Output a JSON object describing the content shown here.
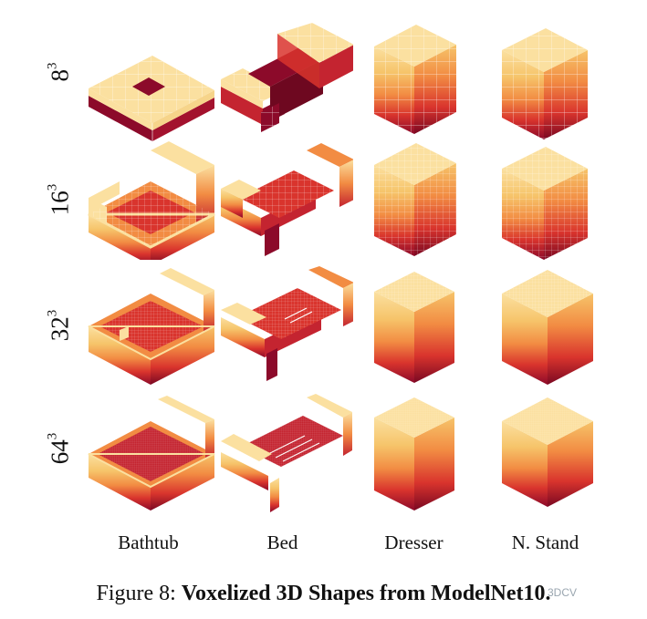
{
  "figure": {
    "columns": [
      "Bathtub",
      "Bed",
      "Dresser",
      "N. Stand"
    ],
    "rows": [
      {
        "base": "8",
        "exp": "3"
      },
      {
        "base": "16",
        "exp": "3"
      },
      {
        "base": "32",
        "exp": "3"
      },
      {
        "base": "64",
        "exp": "3"
      }
    ]
  },
  "caption": {
    "prefix": "Figure 8: ",
    "title": "Voxelized 3D Shapes from ModelNet10."
  },
  "watermark": "3DCV",
  "colors": {
    "top": "#fbe0a0",
    "light": "#f6c46a",
    "orange": "#f28c43",
    "red": "#d9342d",
    "dark": "#8c0a2a"
  }
}
